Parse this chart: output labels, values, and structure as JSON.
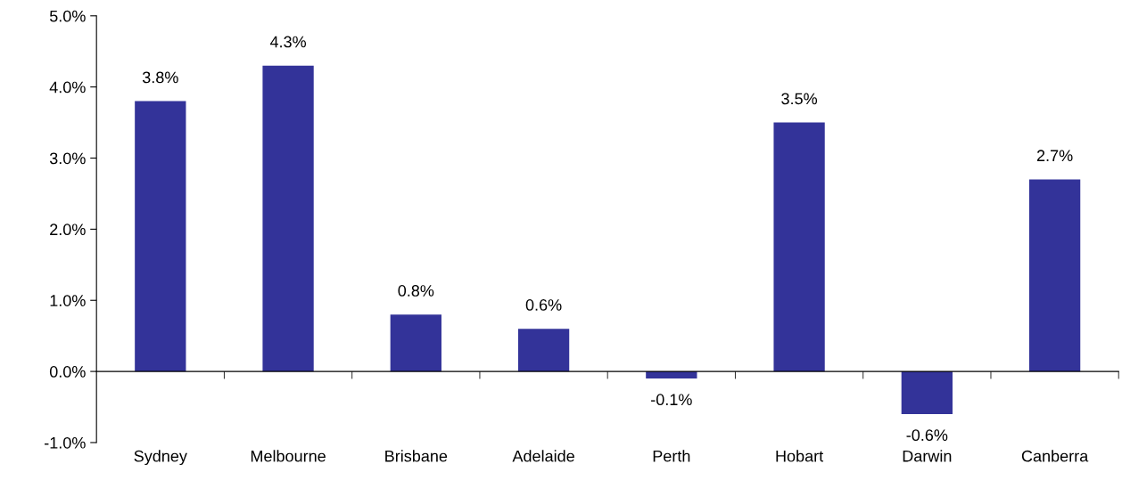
{
  "chart_data": {
    "type": "bar",
    "categories": [
      "Sydney",
      "Melbourne",
      "Brisbane",
      "Adelaide",
      "Perth",
      "Hobart",
      "Darwin",
      "Canberra"
    ],
    "values": [
      3.8,
      4.3,
      0.8,
      0.6,
      -0.1,
      3.5,
      -0.6,
      2.7
    ],
    "value_labels": [
      "3.8%",
      "4.3%",
      "0.8%",
      "0.6%",
      "-0.1%",
      "3.5%",
      "-0.6%",
      "2.7%"
    ],
    "color": "#333399",
    "ylim": [
      -1,
      5
    ],
    "yticks": [
      {
        "value": -1,
        "label": "-1.0%"
      },
      {
        "value": 0,
        "label": "0.0%"
      },
      {
        "value": 1,
        "label": "1.0%"
      },
      {
        "value": 2,
        "label": "2.0%"
      },
      {
        "value": 3,
        "label": "3.0%"
      },
      {
        "value": 4,
        "label": "4.0%"
      },
      {
        "value": 5,
        "label": "5.0%"
      }
    ],
    "legend": false
  }
}
